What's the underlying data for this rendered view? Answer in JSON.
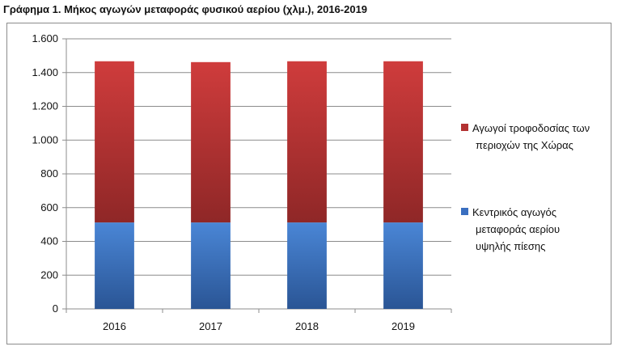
{
  "title": "Γράφημα 1. Μήκος αγωγών μεταφοράς φυσικού αερίου (χλμ.), 2016-2019",
  "chart_data": {
    "type": "bar",
    "stacked": true,
    "title": "Γράφημα 1. Μήκος αγωγών μεταφοράς φυσικού αερίου (χλμ.), 2016-2019",
    "xlabel": "",
    "ylabel": "",
    "categories": [
      "2016",
      "2017",
      "2018",
      "2019"
    ],
    "ylim": [
      0,
      1600
    ],
    "yticks": [
      0,
      200,
      400,
      600,
      800,
      1000,
      1200,
      1400,
      1600
    ],
    "ytick_labels": [
      "0",
      "200",
      "400",
      "600",
      "800",
      "1.000",
      "1.200",
      "1.400",
      "1.600"
    ],
    "grid": true,
    "legend_position": "right",
    "series": [
      {
        "name": "Κεντρικός αγωγός μεταφοράς αερίου υψηλής πίεσης",
        "legend_lines": [
          "Κεντρικός αγωγός",
          "μεταφοράς αερίου",
          "υψηλής πίεσης"
        ],
        "color": "#3a6fc0",
        "values": [
          512,
          512,
          512,
          512
        ]
      },
      {
        "name": "Αγωγοί τροφοδοσίας των περιοχών της Χώρας",
        "legend_lines": [
          "Αγωγοί τροφοδοσίας των",
          "περιοχών της Χώρας"
        ],
        "color": "#b33232",
        "values": [
          955,
          950,
          955,
          955
        ]
      }
    ]
  }
}
